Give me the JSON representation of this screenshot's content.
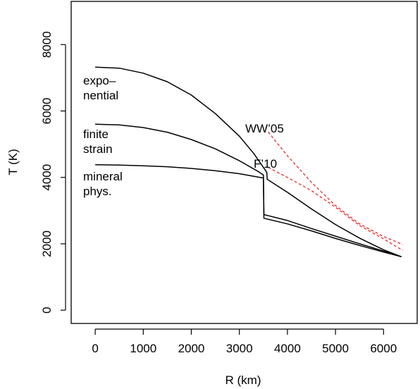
{
  "chart_data": {
    "type": "line",
    "title": "",
    "xlabel": "R (km)",
    "ylabel": "T (K)",
    "xlim": [
      -500,
      6700
    ],
    "ylim": [
      -400,
      9300
    ],
    "xticks": [
      0,
      1000,
      2000,
      3000,
      4000,
      5000,
      6000
    ],
    "yticks": [
      0,
      2000,
      4000,
      6000,
      8000
    ],
    "xtick_labels": [
      "0",
      "1000",
      "2000",
      "3000",
      "4000",
      "5000",
      "6000"
    ],
    "ytick_labels": [
      "0",
      "2000",
      "4000",
      "6000",
      "8000"
    ],
    "grid": false,
    "legend": "none",
    "series": [
      {
        "name": "exponential",
        "label_lines": [
          "expo–",
          "nential"
        ],
        "color": "#000000",
        "dashed": false,
        "points": [
          [
            0,
            7320
          ],
          [
            500,
            7290
          ],
          [
            1000,
            7140
          ],
          [
            1500,
            6880
          ],
          [
            2000,
            6480
          ],
          [
            2500,
            5920
          ],
          [
            3000,
            5240
          ],
          [
            3300,
            4720
          ],
          [
            3500,
            4300
          ],
          [
            3570,
            4150
          ],
          [
            3580,
            3940
          ],
          [
            4000,
            3550
          ],
          [
            4500,
            3050
          ],
          [
            5000,
            2580
          ],
          [
            5500,
            2170
          ],
          [
            6000,
            1820
          ],
          [
            6371,
            1610
          ]
        ]
      },
      {
        "name": "finite strain",
        "label_lines": [
          "finite",
          "strain"
        ],
        "color": "#000000",
        "dashed": false,
        "points": [
          [
            0,
            5600
          ],
          [
            500,
            5580
          ],
          [
            1000,
            5500
          ],
          [
            1500,
            5360
          ],
          [
            2000,
            5140
          ],
          [
            2500,
            4860
          ],
          [
            3000,
            4500
          ],
          [
            3400,
            4170
          ],
          [
            3500,
            4070
          ],
          [
            3510,
            2880
          ],
          [
            4000,
            2700
          ],
          [
            4500,
            2460
          ],
          [
            5000,
            2230
          ],
          [
            5500,
            2000
          ],
          [
            6000,
            1780
          ],
          [
            6371,
            1610
          ]
        ]
      },
      {
        "name": "mineral phys.",
        "label_lines": [
          "mineral",
          "phys."
        ],
        "color": "#000000",
        "dashed": false,
        "points": [
          [
            0,
            4380
          ],
          [
            500,
            4370
          ],
          [
            1000,
            4350
          ],
          [
            1500,
            4320
          ],
          [
            2000,
            4270
          ],
          [
            2500,
            4200
          ],
          [
            3000,
            4110
          ],
          [
            3500,
            3980
          ],
          [
            3510,
            2770
          ],
          [
            4000,
            2600
          ],
          [
            4500,
            2390
          ],
          [
            5000,
            2160
          ],
          [
            5500,
            1950
          ],
          [
            6000,
            1750
          ],
          [
            6371,
            1610
          ]
        ]
      },
      {
        "name": "WW'05",
        "label_lines": [
          "WW’05"
        ],
        "color": "#e8292a",
        "dashed": true,
        "points": [
          [
            3600,
            5370
          ],
          [
            4000,
            4650
          ],
          [
            4500,
            3850
          ],
          [
            5000,
            3150
          ],
          [
            5500,
            2600
          ],
          [
            6000,
            2220
          ],
          [
            6400,
            1980
          ]
        ]
      },
      {
        "name": "F'10",
        "label_lines": [
          "F’10"
        ],
        "color": "#e8292a",
        "dashed": true,
        "points": [
          [
            3600,
            4300
          ],
          [
            4000,
            4000
          ],
          [
            4500,
            3600
          ],
          [
            5000,
            3100
          ],
          [
            5500,
            2550
          ],
          [
            6000,
            2150
          ],
          [
            6400,
            1800
          ]
        ]
      }
    ]
  }
}
